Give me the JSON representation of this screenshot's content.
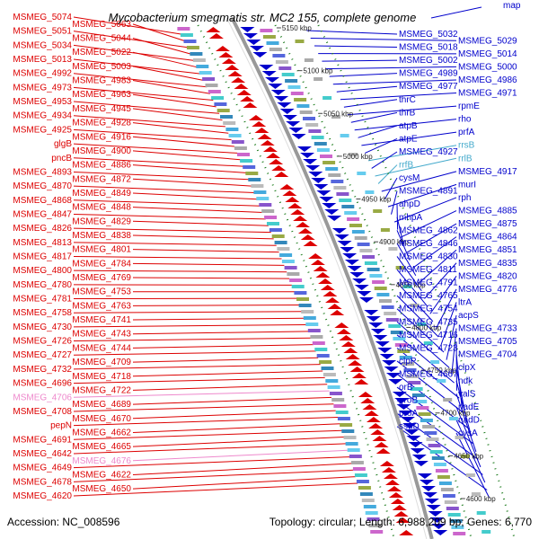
{
  "title": "Mycobacterium smegmatis str. MC2 155, complete genome",
  "map_link": "map",
  "footer": {
    "accession": "Accession: NC_008596",
    "topology": "Topology: circular; Length: 6,988,209 bp; Genes: 6,770"
  },
  "colors": {
    "forward": "#dd0000",
    "reverse": "#0000cc",
    "forward_light": "#ee88cc",
    "reverse_light": "#44aacc",
    "axis": "#999999",
    "tick_mark": "#1a7a1a"
  },
  "ticks": [
    "5150 kbp",
    "5100 kbp",
    "5050 kbp",
    "5000 kbp",
    "4950 kbp",
    "4900 kbp",
    "4850 kbp",
    "4800 kbp",
    "4750 kbp",
    "4700 kbp",
    "4650 kbp",
    "4600 kbp"
  ],
  "left_labels": [
    {
      "text": "MSMEG_5074",
      "light": false
    },
    {
      "text": "MSMEG_5063",
      "light": false
    },
    {
      "text": "MSMEG_5051",
      "light": false
    },
    {
      "text": "MSMEG_5044",
      "light": false
    },
    {
      "text": "MSMEG_5034",
      "light": false
    },
    {
      "text": "MSMEG_5022",
      "light": false
    },
    {
      "text": "MSMEG_5013",
      "light": false
    },
    {
      "text": "MSMEG_5003",
      "light": false
    },
    {
      "text": "MSMEG_4992",
      "light": false
    },
    {
      "text": "MSMEG_4983",
      "light": false
    },
    {
      "text": "MSMEG_4973",
      "light": false
    },
    {
      "text": "MSMEG_4963",
      "light": false
    },
    {
      "text": "MSMEG_4953",
      "light": false
    },
    {
      "text": "MSMEG_4945",
      "light": false
    },
    {
      "text": "MSMEG_4934",
      "light": false
    },
    {
      "text": "MSMEG_4928",
      "light": false
    },
    {
      "text": "MSMEG_4925",
      "light": false
    },
    {
      "text": "MSMEG_4916",
      "light": false
    },
    {
      "text": "glgB",
      "light": false
    },
    {
      "text": "MSMEG_4900",
      "light": false
    },
    {
      "text": "pncB",
      "light": false
    },
    {
      "text": "MSMEG_4886",
      "light": false
    },
    {
      "text": "MSMEG_4893",
      "light": false
    },
    {
      "text": "MSMEG_4872",
      "light": false
    },
    {
      "text": "MSMEG_4870",
      "light": false
    },
    {
      "text": "MSMEG_4849",
      "light": false
    },
    {
      "text": "MSMEG_4868",
      "light": false
    },
    {
      "text": "MSMEG_4848",
      "light": false
    },
    {
      "text": "MSMEG_4847",
      "light": false
    },
    {
      "text": "MSMEG_4829",
      "light": false
    },
    {
      "text": "MSMEG_4826",
      "light": false
    },
    {
      "text": "MSMEG_4838",
      "light": false
    },
    {
      "text": "MSMEG_4813",
      "light": false
    },
    {
      "text": "MSMEG_4801",
      "light": false
    },
    {
      "text": "MSMEG_4817",
      "light": false
    },
    {
      "text": "MSMEG_4784",
      "light": false
    },
    {
      "text": "MSMEG_4800",
      "light": false
    },
    {
      "text": "MSMEG_4769",
      "light": false
    },
    {
      "text": "MSMEG_4780",
      "light": false
    },
    {
      "text": "MSMEG_4753",
      "light": false
    },
    {
      "text": "MSMEG_4781",
      "light": false
    },
    {
      "text": "MSMEG_4763",
      "light": false
    },
    {
      "text": "MSMEG_4758",
      "light": false
    },
    {
      "text": "MSMEG_4741",
      "light": false
    },
    {
      "text": "MSMEG_4730",
      "light": false
    },
    {
      "text": "MSMEG_4743",
      "light": false
    },
    {
      "text": "MSMEG_4726",
      "light": false
    },
    {
      "text": "MSMEG_4744",
      "light": false
    },
    {
      "text": "MSMEG_4727",
      "light": false
    },
    {
      "text": "MSMEG_4709",
      "light": false
    },
    {
      "text": "MSMEG_4732",
      "light": false
    },
    {
      "text": "MSMEG_4718",
      "light": false
    },
    {
      "text": "MSMEG_4696",
      "light": false
    },
    {
      "text": "MSMEG_4722",
      "light": false
    },
    {
      "text": "MSMEG_4706",
      "light": true
    },
    {
      "text": "MSMEG_4689",
      "light": false
    },
    {
      "text": "MSMEG_4708",
      "light": false
    },
    {
      "text": "MSMEG_4670",
      "light": false
    },
    {
      "text": "pepN",
      "light": false
    },
    {
      "text": "MSMEG_4662",
      "light": false
    },
    {
      "text": "MSMEG_4691",
      "light": false
    },
    {
      "text": "MSMEG_4665",
      "light": false
    },
    {
      "text": "MSMEG_4642",
      "light": false
    },
    {
      "text": "MSMEG_4676",
      "light": true
    },
    {
      "text": "MSMEG_4649",
      "light": false
    },
    {
      "text": "MSMEG_4622",
      "light": false
    },
    {
      "text": "MSMEG_4678",
      "light": false
    },
    {
      "text": "MSMEG_4650",
      "light": false
    },
    {
      "text": "MSMEG_4620",
      "light": false
    }
  ],
  "right_labels": [
    {
      "text": "MSMEG_5032",
      "light": false
    },
    {
      "text": "MSMEG_5029",
      "light": false
    },
    {
      "text": "MSMEG_5018",
      "light": false
    },
    {
      "text": "MSMEG_5014",
      "light": false
    },
    {
      "text": "MSMEG_5002",
      "light": false
    },
    {
      "text": "MSMEG_5000",
      "light": false
    },
    {
      "text": "MSMEG_4989",
      "light": false
    },
    {
      "text": "MSMEG_4986",
      "light": false
    },
    {
      "text": "MSMEG_4977",
      "light": false
    },
    {
      "text": "MSMEG_4971",
      "light": false
    },
    {
      "text": "thrC",
      "light": false
    },
    {
      "text": "rpmE",
      "light": false
    },
    {
      "text": "thrB",
      "light": false
    },
    {
      "text": "rho",
      "light": false
    },
    {
      "text": "atpB",
      "light": false
    },
    {
      "text": "prfA",
      "light": false
    },
    {
      "text": "atpE",
      "light": false
    },
    {
      "text": "rrsB",
      "light": true
    },
    {
      "text": "MSMEG_4927",
      "light": false
    },
    {
      "text": "rrlB",
      "light": true
    },
    {
      "text": "rrfB",
      "light": true
    },
    {
      "text": "MSMEG_4917",
      "light": false
    },
    {
      "text": "cysM",
      "light": false
    },
    {
      "text": "murI",
      "light": false
    },
    {
      "text": "MSMEG_4891",
      "light": false
    },
    {
      "text": "rph",
      "light": false
    },
    {
      "text": "ahpD",
      "light": false
    },
    {
      "text": "MSMEG_4885",
      "light": false
    },
    {
      "text": "mhpA",
      "light": false
    },
    {
      "text": "MSMEG_4875",
      "light": false
    },
    {
      "text": "MSMEG_4862",
      "light": false
    },
    {
      "text": "MSMEG_4864",
      "light": false
    },
    {
      "text": "MSMEG_4846",
      "light": false
    },
    {
      "text": "MSMEG_4851",
      "light": false
    },
    {
      "text": "MSMEG_4830",
      "light": false
    },
    {
      "text": "MSMEG_4835",
      "light": false
    },
    {
      "text": "MSMEG_4811",
      "light": false
    },
    {
      "text": "MSMEG_4820",
      "light": false
    },
    {
      "text": "MSMEG_4791",
      "light": false
    },
    {
      "text": "MSMEG_4776",
      "light": false
    },
    {
      "text": "MSMEG_4765",
      "light": false
    },
    {
      "text": "ltrA",
      "light": false
    },
    {
      "text": "MSMEG_4754",
      "light": false
    },
    {
      "text": "acpS",
      "light": false
    },
    {
      "text": "MSMEG_4735",
      "light": false
    },
    {
      "text": "MSMEG_4733",
      "light": false
    },
    {
      "text": "MSMEG_4716",
      "light": false
    },
    {
      "text": "MSMEG_4705",
      "light": false
    },
    {
      "text": "MSMEG_4723",
      "light": false
    },
    {
      "text": "MSMEG_4704",
      "light": false
    },
    {
      "text": "clpP",
      "light": false
    },
    {
      "text": "clpX",
      "light": false
    },
    {
      "text": "MSMEG_4667",
      "light": false
    },
    {
      "text": "ndk",
      "light": false
    },
    {
      "text": "orB",
      "light": false
    },
    {
      "text": "valS",
      "light": false
    },
    {
      "text": "proB",
      "light": false
    },
    {
      "text": "nadE",
      "light": false
    },
    {
      "text": "proA",
      "light": false
    },
    {
      "text": "nadD",
      "light": false
    },
    {
      "text": "ssuD",
      "light": false
    },
    {
      "text": "cysA",
      "light": false
    }
  ]
}
